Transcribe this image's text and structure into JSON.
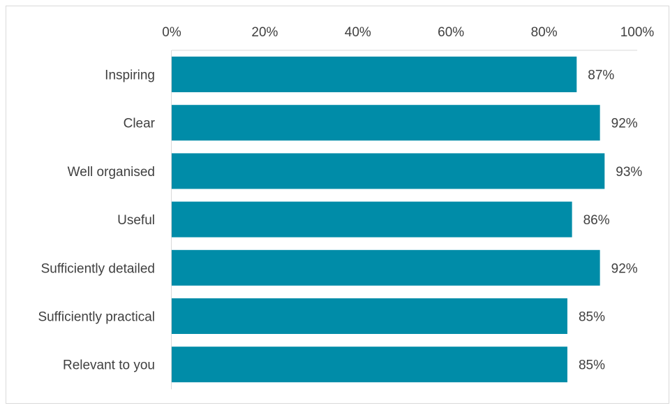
{
  "chart_data": {
    "type": "bar",
    "orientation": "horizontal",
    "categories": [
      "Inspiring",
      "Clear",
      "Well organised",
      "Useful",
      "Sufficiently detailed",
      "Sufficiently practical",
      "Relevant to you"
    ],
    "values": [
      87,
      92,
      93,
      86,
      92,
      85,
      85
    ],
    "data_labels": [
      "87%",
      "92%",
      "93%",
      "86%",
      "92%",
      "85%",
      "85%"
    ],
    "x_ticks": [
      "0%",
      "20%",
      "40%",
      "60%",
      "80%",
      "100%"
    ],
    "xlim": [
      0,
      100
    ],
    "xaxis_position": "top",
    "grid": false,
    "legend": "none",
    "bar_color": "#008CA8",
    "frame_color": "#D9D9D9",
    "axis_color": "#D9D9D9",
    "text_color": "#404040"
  }
}
